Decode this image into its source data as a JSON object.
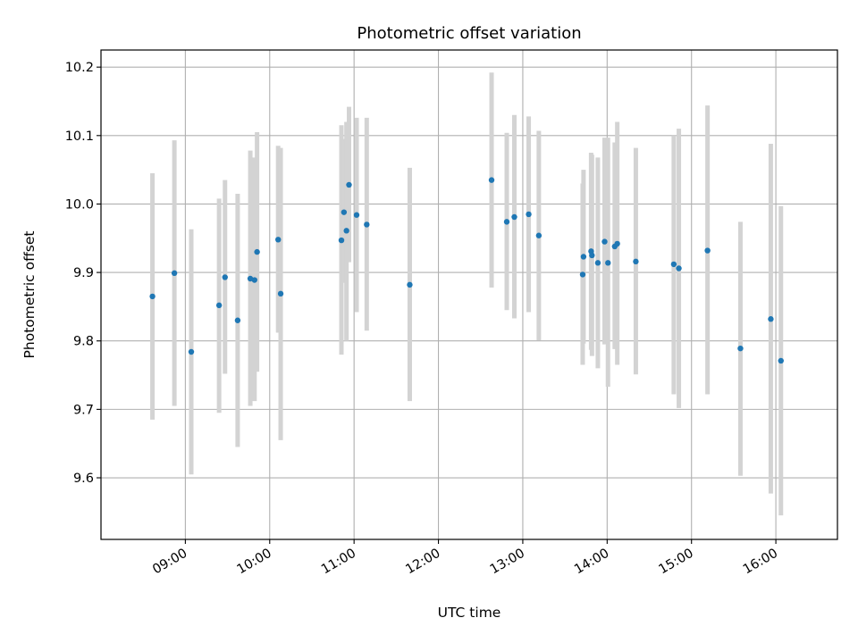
{
  "chart_data": {
    "type": "scatter",
    "title": "Photometric offset variation",
    "xlabel": "UTC time",
    "ylabel": "Photometric offset",
    "x_unit": "hours (UTC, decimal)",
    "xlim": [
      8.0,
      16.73
    ],
    "ylim": [
      9.51,
      10.225
    ],
    "x_ticks": [
      9,
      10,
      11,
      12,
      13,
      14,
      15,
      16
    ],
    "x_tick_labels": [
      "09:00",
      "10:00",
      "11:00",
      "12:00",
      "13:00",
      "14:00",
      "15:00",
      "16:00"
    ],
    "y_ticks": [
      9.6,
      9.7,
      9.8,
      9.9,
      10.0,
      10.1,
      10.2
    ],
    "y_tick_labels": [
      "9.6",
      "9.7",
      "9.8",
      "9.9",
      "10.0",
      "10.1",
      "10.2"
    ],
    "grid": true,
    "point_color": "#1f77b4",
    "errorbar_color": "#d3d3d3",
    "points": [
      {
        "x": 8.61,
        "y": 9.865,
        "lo": 9.685,
        "hi": 10.045
      },
      {
        "x": 8.87,
        "y": 9.899,
        "lo": 9.705,
        "hi": 10.093
      },
      {
        "x": 9.07,
        "y": 9.784,
        "lo": 9.605,
        "hi": 9.963
      },
      {
        "x": 9.4,
        "y": 9.852,
        "lo": 9.695,
        "hi": 10.008
      },
      {
        "x": 9.47,
        "y": 9.893,
        "lo": 9.752,
        "hi": 10.035
      },
      {
        "x": 9.62,
        "y": 9.83,
        "lo": 9.645,
        "hi": 10.015
      },
      {
        "x": 9.77,
        "y": 9.891,
        "lo": 9.705,
        "hi": 10.078
      },
      {
        "x": 9.82,
        "y": 9.889,
        "lo": 9.712,
        "hi": 10.068
      },
      {
        "x": 9.85,
        "y": 9.93,
        "lo": 9.755,
        "hi": 10.105
      },
      {
        "x": 10.1,
        "y": 9.948,
        "lo": 9.812,
        "hi": 10.085
      },
      {
        "x": 10.13,
        "y": 9.869,
        "lo": 9.655,
        "hi": 10.082
      },
      {
        "x": 10.85,
        "y": 9.947,
        "lo": 9.78,
        "hi": 10.115
      },
      {
        "x": 10.88,
        "y": 9.988,
        "lo": 9.885,
        "hi": 10.095
      },
      {
        "x": 10.91,
        "y": 9.961,
        "lo": 9.8,
        "hi": 10.12
      },
      {
        "x": 10.94,
        "y": 10.028,
        "lo": 9.915,
        "hi": 10.142
      },
      {
        "x": 11.03,
        "y": 9.984,
        "lo": 9.842,
        "hi": 10.126
      },
      {
        "x": 11.15,
        "y": 9.97,
        "lo": 9.815,
        "hi": 10.126
      },
      {
        "x": 11.66,
        "y": 9.882,
        "lo": 9.712,
        "hi": 10.053
      },
      {
        "x": 12.63,
        "y": 10.035,
        "lo": 9.878,
        "hi": 10.192
      },
      {
        "x": 12.81,
        "y": 9.974,
        "lo": 9.845,
        "hi": 10.104
      },
      {
        "x": 12.9,
        "y": 9.981,
        "lo": 9.833,
        "hi": 10.13
      },
      {
        "x": 13.07,
        "y": 9.985,
        "lo": 9.842,
        "hi": 10.128
      },
      {
        "x": 13.19,
        "y": 9.954,
        "lo": 9.801,
        "hi": 10.107
      },
      {
        "x": 13.71,
        "y": 9.897,
        "lo": 9.765,
        "hi": 10.03
      },
      {
        "x": 13.72,
        "y": 9.923,
        "lo": 9.796,
        "hi": 10.05
      },
      {
        "x": 13.81,
        "y": 9.931,
        "lo": 9.787,
        "hi": 10.075
      },
      {
        "x": 13.82,
        "y": 9.925,
        "lo": 9.778,
        "hi": 10.072
      },
      {
        "x": 13.89,
        "y": 9.914,
        "lo": 9.76,
        "hi": 10.068
      },
      {
        "x": 13.97,
        "y": 9.945,
        "lo": 9.795,
        "hi": 10.097
      },
      {
        "x": 14.01,
        "y": 9.914,
        "lo": 9.733,
        "hi": 10.097
      },
      {
        "x": 14.09,
        "y": 9.938,
        "lo": 9.788,
        "hi": 10.09
      },
      {
        "x": 14.12,
        "y": 9.942,
        "lo": 9.765,
        "hi": 10.12
      },
      {
        "x": 14.34,
        "y": 9.916,
        "lo": 9.751,
        "hi": 10.082
      },
      {
        "x": 14.79,
        "y": 9.912,
        "lo": 9.722,
        "hi": 10.1
      },
      {
        "x": 14.85,
        "y": 9.906,
        "lo": 9.702,
        "hi": 10.11
      },
      {
        "x": 15.19,
        "y": 9.932,
        "lo": 9.722,
        "hi": 10.144
      },
      {
        "x": 15.58,
        "y": 9.789,
        "lo": 9.603,
        "hi": 9.974
      },
      {
        "x": 15.94,
        "y": 9.832,
        "lo": 9.577,
        "hi": 10.088
      },
      {
        "x": 16.06,
        "y": 9.771,
        "lo": 9.545,
        "hi": 9.997
      }
    ]
  }
}
